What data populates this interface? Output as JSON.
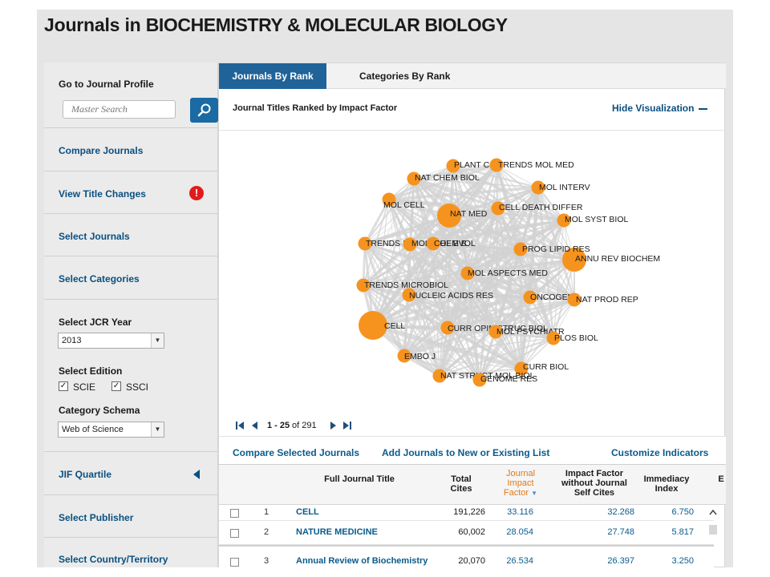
{
  "title": {
    "prefix": "Journals in ",
    "category": "BIOCHEMISTRY & MOLECULAR BIOLOGY"
  },
  "sidebar": {
    "go_to_profile": "Go to Journal Profile",
    "search_placeholder": "Master Search",
    "compare": "Compare Journals",
    "view_title_changes": "View Title Changes",
    "alert_glyph": "!",
    "select_journals": "Select Journals",
    "select_categories": "Select Categories",
    "jcr_year_label": "Select JCR Year",
    "jcr_year_value": "2013",
    "edition_label": "Select Edition",
    "edition_scie": "SCIE",
    "edition_ssci": "SSCI",
    "schema_label": "Category Schema",
    "schema_value": "Web of Science",
    "jif_quartile": "JIF Quartile",
    "select_publisher": "Select Publisher",
    "select_country": "Select Country/Territory"
  },
  "tabs": {
    "journals": "Journals By Rank",
    "categories": "Categories By Rank"
  },
  "viz": {
    "heading": "Journal Titles Ranked by Impact Factor",
    "hide": "Hide Visualization"
  },
  "network": {
    "nodes": [
      {
        "label": "CELL",
        "size": 3
      },
      {
        "label": "NAT MED",
        "size": 2
      },
      {
        "label": "ANNU REV BIOCHEM",
        "size": 2
      },
      {
        "label": "MOL CELL",
        "size": 1
      },
      {
        "label": "NAT CHEM BIOL",
        "size": 1
      },
      {
        "label": "PLANT C",
        "size": 1
      },
      {
        "label": "TRENDS MOL MED",
        "size": 1
      },
      {
        "label": "MOL INTERV",
        "size": 1
      },
      {
        "label": "CELL DEATH DIFFER",
        "size": 1
      },
      {
        "label": "MOL SYST BIOL",
        "size": 1
      },
      {
        "label": "TRENDS B",
        "size": 1
      },
      {
        "label": "MOL BIOL EVOL",
        "size": 1
      },
      {
        "label": "CHEM B",
        "size": 1
      },
      {
        "label": "PROG LIPID RES",
        "size": 1
      },
      {
        "label": "MOL ASPECTS MED",
        "size": 1
      },
      {
        "label": "TRENDS MICROBIOL",
        "size": 1
      },
      {
        "label": "NUCLEIC ACIDS RES",
        "size": 1
      },
      {
        "label": "ONCOGENE",
        "size": 1
      },
      {
        "label": "NAT PROD REP",
        "size": 1
      },
      {
        "label": "CURR OPIN STRUC BIOL",
        "size": 1
      },
      {
        "label": "MOL PSYCHIATR",
        "size": 1
      },
      {
        "label": "PLOS BIOL",
        "size": 1
      },
      {
        "label": "EMBO J",
        "size": 1
      },
      {
        "label": "CURR BIOL",
        "size": 1
      },
      {
        "label": "NAT STRUCT MOL BIOL",
        "size": 1
      },
      {
        "label": "GENOME RES",
        "size": 1
      }
    ]
  },
  "pager": {
    "range": "1 - 25",
    "of": "of 291"
  },
  "actions": {
    "compare": "Compare Selected Journals",
    "add": "Add Journals to New or Existing List",
    "customize": "Customize Indicators"
  },
  "table": {
    "headers": {
      "title": "Full Journal Title",
      "total_cites": [
        "Total",
        "Cites"
      ],
      "jif": [
        "Journal",
        "Impact",
        "Factor"
      ],
      "jif_no_self": [
        "Impact Factor",
        "without Journal",
        "Self Cites"
      ],
      "immediacy": [
        "Immediacy",
        "Index"
      ],
      "cut": "E"
    },
    "rows": [
      {
        "rank": "1",
        "title": "CELL",
        "cites": "191,226",
        "jif": "33.116",
        "jif_ns": "32.268",
        "imm": "6.750"
      },
      {
        "rank": "2",
        "title": "NATURE MEDICINE",
        "cites": "60,002",
        "jif": "28.054",
        "jif_ns": "27.748",
        "imm": "5.817"
      },
      {
        "rank": "3",
        "title": "Annual Review of Biochemistry",
        "cites": "20,070",
        "jif": "26.534",
        "jif_ns": "26.397",
        "imm": "3.250"
      }
    ]
  },
  "colors": {
    "accent": "#1f6399",
    "link": "#0a4f80",
    "node": "#f6931e",
    "sorted": "#e07a17",
    "alert": "#e01b1b"
  }
}
